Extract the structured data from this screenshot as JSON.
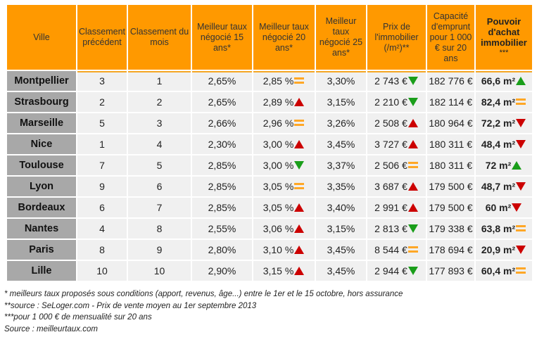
{
  "colors": {
    "header_bg": "#ff9900",
    "city_bg": "#a8a8a8",
    "cell_bg": "#f0f0f0",
    "up_red": "#cc0000",
    "up_green": "#1a9e1a",
    "down_green": "#1a9e1a",
    "down_red": "#cc0000",
    "equal": "#ffa726"
  },
  "header": {
    "ville": "Ville",
    "prev_rank": "Classement précédent",
    "month_rank": "Classement du mois",
    "rate15": "Meilleur taux négocié 15 ans*",
    "rate20": "Meilleur taux négocié 20 ans*",
    "rate25": "Meilleur taux négocié 25 ans*",
    "price": "Prix de l'immobilier (/m²)**",
    "capacity": "Capacité d'emprunt pour 1 000 € sur 20 ans",
    "power": "Pouvoir d'achat immobilier",
    "power_stars": "***"
  },
  "rows": [
    {
      "city": "Montpellier",
      "prev": "3",
      "rank": "1",
      "r15": "2,65%",
      "r20": "2,85 %",
      "r20_trend": "equal",
      "r25": "3,30%",
      "price": "2 743 €",
      "price_trend": "down-green",
      "capacity": "182 776 €",
      "power": "66,6 m²",
      "power_trend": "up-green"
    },
    {
      "city": "Strasbourg",
      "prev": "2",
      "rank": "2",
      "r15": "2,65%",
      "r20": "2,89 %",
      "r20_trend": "up-red",
      "r25": "3,15%",
      "price": "2 210 €",
      "price_trend": "down-green",
      "capacity": "182 114 €",
      "power": "82,4 m²",
      "power_trend": "equal"
    },
    {
      "city": "Marseille",
      "prev": "5",
      "rank": "3",
      "r15": "2,66%",
      "r20": "2,96 %",
      "r20_trend": "equal",
      "r25": "3,26%",
      "price": "2 508 €",
      "price_trend": "up-red",
      "capacity": "180 964 €",
      "power": "72,2 m²",
      "power_trend": "down-red"
    },
    {
      "city": "Nice",
      "prev": "1",
      "rank": "4",
      "r15": "2,30%",
      "r20": "3,00 %",
      "r20_trend": "up-red",
      "r25": "3,45%",
      "price": "3 727 €",
      "price_trend": "up-red",
      "capacity": "180 311 €",
      "power": "48,4 m²",
      "power_trend": "down-red"
    },
    {
      "city": "Toulouse",
      "prev": "7",
      "rank": "5",
      "r15": "2,85%",
      "r20": "3,00 %",
      "r20_trend": "down-green",
      "r25": "3,37%",
      "price": "2 506 €",
      "price_trend": "equal",
      "capacity": "180 311 €",
      "power": "72 m²",
      "power_trend": "up-green"
    },
    {
      "city": "Lyon",
      "prev": "9",
      "rank": "6",
      "r15": "2,85%",
      "r20": "3,05 %",
      "r20_trend": "equal",
      "r25": "3,35%",
      "price": "3 687 €",
      "price_trend": "up-red",
      "capacity": "179 500 €",
      "power": "48,7 m²",
      "power_trend": "down-red"
    },
    {
      "city": "Bordeaux",
      "prev": "6",
      "rank": "7",
      "r15": "2,85%",
      "r20": "3,05 %",
      "r20_trend": "up-red",
      "r25": "3,40%",
      "price": "2 991 €",
      "price_trend": "up-red",
      "capacity": "179 500 €",
      "power": "60 m²",
      "power_trend": "down-red"
    },
    {
      "city": "Nantes",
      "prev": "4",
      "rank": "8",
      "r15": "2,55%",
      "r20": "3,06 %",
      "r20_trend": "up-red",
      "r25": "3,15%",
      "price": "2 813 €",
      "price_trend": "down-green",
      "capacity": "179 338 €",
      "power": "63,8 m²",
      "power_trend": "equal"
    },
    {
      "city": "Paris",
      "prev": "8",
      "rank": "9",
      "r15": "2,80%",
      "r20": "3,10 %",
      "r20_trend": "up-red",
      "r25": "3,45%",
      "price": "8 544 €",
      "price_trend": "equal",
      "capacity": "178 694 €",
      "power": "20,9 m²",
      "power_trend": "down-red"
    },
    {
      "city": "Lille",
      "prev": "10",
      "rank": "10",
      "r15": "2,90%",
      "r20": "3,15 %",
      "r20_trend": "up-red",
      "r25": "3,45%",
      "price": "2 944 €",
      "price_trend": "down-green",
      "capacity": "177 893 €",
      "power": "60,4 m²",
      "power_trend": "equal"
    }
  ],
  "notes": [
    "* meilleurs taux proposés sous conditions (apport, revenus, âge...) entre le 1er et le 15 octobre, hors assurance",
    "**source : SeLoger.com -  Prix de vente moyen au 1er septembre 2013",
    "***pour 1 000 € de mensualité sur 20 ans",
    "Source : meilleurtaux.com"
  ]
}
